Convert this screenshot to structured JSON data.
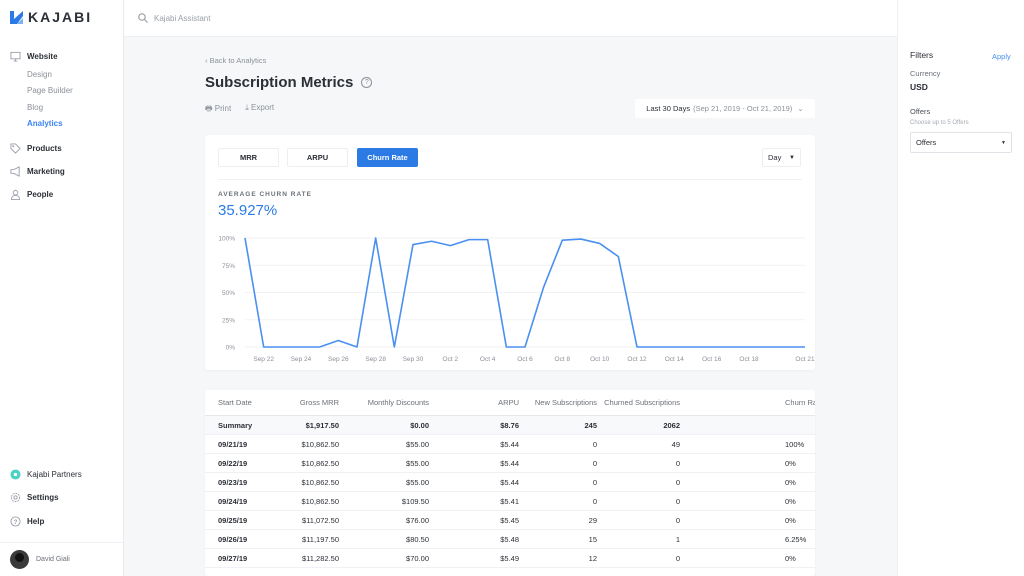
{
  "brand": {
    "name": "KAJABI",
    "color": "#2c7be5"
  },
  "search": {
    "placeholder": "Kajabi Assistant",
    "icon": "search-icon"
  },
  "sidebar": {
    "items": [
      {
        "label": "Website",
        "icon": "monitor-icon",
        "sub": [
          {
            "label": "Design"
          },
          {
            "label": "Page Builder"
          },
          {
            "label": "Blog"
          },
          {
            "label": "Analytics",
            "active": true
          }
        ]
      },
      {
        "label": "Products",
        "icon": "tag-icon"
      },
      {
        "label": "Marketing",
        "icon": "megaphone-icon"
      },
      {
        "label": "People",
        "icon": "person-icon"
      }
    ],
    "bottom": [
      {
        "label": "Kajabi Partners",
        "icon": "partners-icon"
      },
      {
        "label": "Settings",
        "icon": "gear-icon"
      },
      {
        "label": "Help",
        "icon": "help-icon"
      }
    ],
    "user": "David Giali"
  },
  "page": {
    "back": "Back to Analytics",
    "title": "Subscription Metrics",
    "print": "Print",
    "export": "Export",
    "date_range": {
      "label": "Last 30 Days",
      "range": "(Sep 21, 2019 - Oct 21, 2019)"
    }
  },
  "chart_card": {
    "tabs": [
      "MRR",
      "ARPU",
      "Churn Rate"
    ],
    "active_tab": "Churn Rate",
    "interval": "Day",
    "avg_label": "AVERAGE CHURN RATE",
    "avg_value": "35.927%"
  },
  "chart_data": {
    "type": "line",
    "title": "",
    "xlabel": "",
    "ylabel": "",
    "ylim": [
      0,
      100
    ],
    "grid": true,
    "color": "#4a90f0",
    "yticks": [
      "0%",
      "25%",
      "50%",
      "75%",
      "100%"
    ],
    "xticks": [
      "Sep 22",
      "Sep 24",
      "Sep 26",
      "Sep 28",
      "Sep 30",
      "Oct 2",
      "Oct 4",
      "Oct 6",
      "Oct 8",
      "Oct 10",
      "Oct 12",
      "Oct 14",
      "Oct 16",
      "Oct 18",
      "Oct 21"
    ],
    "x": [
      "Sep 21",
      "Sep 22",
      "Sep 23",
      "Sep 24",
      "Sep 25",
      "Sep 26",
      "Sep 27",
      "Sep 28",
      "Sep 29",
      "Sep 30",
      "Oct 1",
      "Oct 2",
      "Oct 3",
      "Oct 4",
      "Oct 5",
      "Oct 6",
      "Oct 7",
      "Oct 8",
      "Oct 9",
      "Oct 10",
      "Oct 11",
      "Oct 12",
      "Oct 13",
      "Oct 14",
      "Oct 15",
      "Oct 16",
      "Oct 17",
      "Oct 18",
      "Oct 19",
      "Oct 20",
      "Oct 21"
    ],
    "values": [
      100,
      0,
      0,
      0,
      0,
      6,
      0,
      100,
      0,
      94,
      97,
      93,
      98.5,
      98.5,
      0,
      0,
      55,
      98,
      99,
      95,
      83,
      0,
      0,
      0,
      0,
      0,
      0,
      0,
      0,
      0,
      0
    ]
  },
  "table": {
    "columns": [
      "Start Date",
      "Gross MRR",
      "Monthly Discounts",
      "ARPU",
      "New Subscriptions",
      "Churned Subscriptions",
      "Churn Rate"
    ],
    "rows": [
      [
        "Summary",
        "$1,917.50",
        "$0.00",
        "$8.76",
        "245",
        "2062",
        ""
      ],
      [
        "09/21/19",
        "$10,862.50",
        "$55.00",
        "$5.44",
        "0",
        "49",
        "100%"
      ],
      [
        "09/22/19",
        "$10,862.50",
        "$55.00",
        "$5.44",
        "0",
        "0",
        "0%"
      ],
      [
        "09/23/19",
        "$10,862.50",
        "$55.00",
        "$5.44",
        "0",
        "0",
        "0%"
      ],
      [
        "09/24/19",
        "$10,862.50",
        "$109.50",
        "$5.41",
        "0",
        "0",
        "0%"
      ],
      [
        "09/25/19",
        "$11,072.50",
        "$76.00",
        "$5.45",
        "29",
        "0",
        "0%"
      ],
      [
        "09/26/19",
        "$11,197.50",
        "$80.50",
        "$5.48",
        "15",
        "1",
        "6.25%"
      ],
      [
        "09/27/19",
        "$11,282.50",
        "$70.00",
        "$5.49",
        "12",
        "0",
        "0%"
      ]
    ]
  },
  "filters": {
    "title": "Filters",
    "apply": "Apply",
    "currency_label": "Currency",
    "currency": "USD",
    "offers_label": "Offers",
    "offers_hint": "Choose up to 5 Offers",
    "offers_select": "Offers"
  }
}
